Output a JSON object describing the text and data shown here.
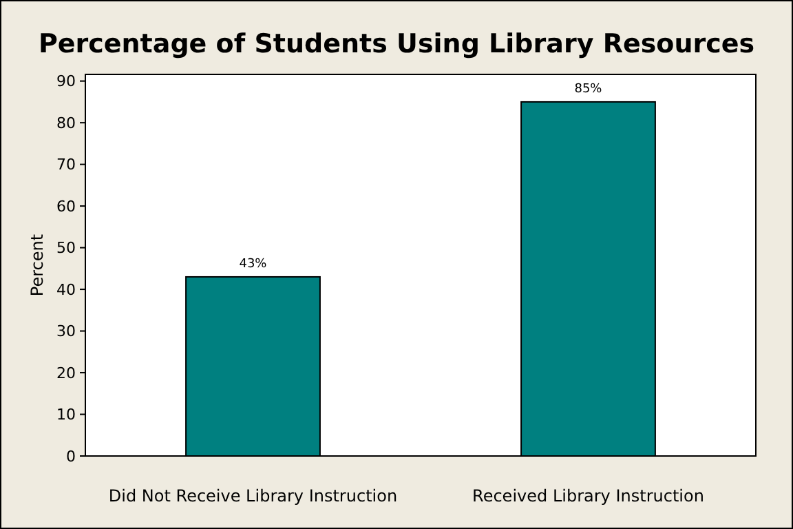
{
  "chart_data": {
    "type": "bar",
    "title": "Percentage of Students Using Library Resources",
    "ylabel": "Percent",
    "categories": [
      "Did Not Receive Library Instruction",
      "Received Library Instruction"
    ],
    "values": [
      43,
      85
    ],
    "value_labels": [
      "43%",
      "85%"
    ],
    "color": "#008080",
    "ylim": [
      0,
      91.6
    ],
    "yticks": [
      0,
      10,
      20,
      30,
      40,
      50,
      60,
      70,
      80,
      90
    ],
    "grid": false
  }
}
